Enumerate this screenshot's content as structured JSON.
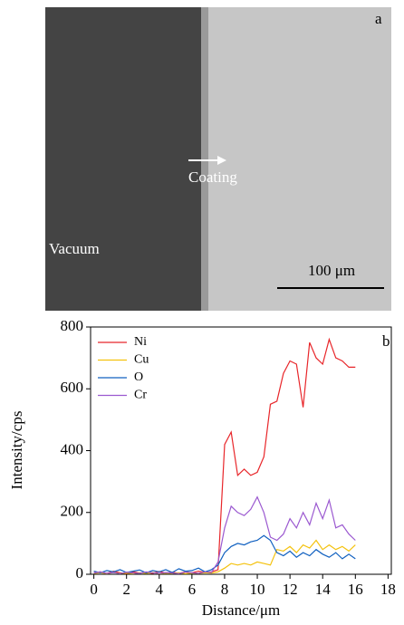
{
  "panel_a": {
    "label": "a",
    "arrow_label": "Coating",
    "region_label": "Vacuum",
    "scale_bar": "100 μm"
  },
  "chart_data": {
    "type": "line",
    "panel_label": "b",
    "x_label": "Distance/μm",
    "y_label": "Intensity/cps",
    "x": [
      0,
      0.4,
      0.8,
      1.2,
      1.6,
      2.0,
      2.4,
      2.8,
      3.2,
      3.6,
      4.0,
      4.4,
      4.8,
      5.2,
      5.6,
      6.0,
      6.4,
      6.8,
      7.2,
      7.6,
      8.0,
      8.4,
      8.8,
      9.2,
      9.6,
      10.0,
      10.4,
      10.8,
      11.2,
      11.6,
      12.0,
      12.4,
      12.8,
      13.2,
      13.6,
      14.0,
      14.4,
      14.8,
      15.2,
      15.6,
      16.0
    ],
    "series": [
      {
        "name": "Ni",
        "color": "#e8262a",
        "values": [
          5,
          8,
          3,
          10,
          5,
          2,
          8,
          4,
          6,
          3,
          9,
          4,
          7,
          3,
          8,
          5,
          10,
          6,
          8,
          15,
          420,
          460,
          320,
          340,
          320,
          330,
          380,
          550,
          560,
          650,
          690,
          680,
          540,
          750,
          700,
          680,
          760,
          700,
          690,
          670,
          670
        ]
      },
      {
        "name": "Cu",
        "color": "#f4c20d",
        "values": [
          3,
          5,
          2,
          6,
          3,
          4,
          2,
          5,
          3,
          6,
          2,
          4,
          3,
          5,
          2,
          4,
          3,
          5,
          4,
          8,
          20,
          35,
          30,
          35,
          30,
          40,
          35,
          30,
          80,
          75,
          90,
          70,
          95,
          85,
          110,
          80,
          95,
          80,
          90,
          75,
          95
        ]
      },
      {
        "name": "O",
        "color": "#1060c0",
        "values": [
          10,
          5,
          12,
          8,
          15,
          6,
          10,
          14,
          5,
          12,
          8,
          15,
          6,
          18,
          10,
          12,
          20,
          8,
          15,
          30,
          70,
          90,
          100,
          95,
          105,
          110,
          125,
          110,
          70,
          60,
          75,
          55,
          70,
          60,
          80,
          65,
          55,
          70,
          50,
          65,
          50
        ]
      },
      {
        "name": "Cr",
        "color": "#9b59d0",
        "values": [
          4,
          8,
          3,
          6,
          2,
          7,
          4,
          3,
          8,
          5,
          3,
          6,
          4,
          2,
          7,
          5,
          3,
          8,
          6,
          40,
          150,
          220,
          200,
          190,
          210,
          250,
          200,
          120,
          110,
          130,
          180,
          150,
          200,
          160,
          230,
          180,
          240,
          150,
          160,
          130,
          110
        ]
      }
    ],
    "xlim": [
      -0.2,
      18.2
    ],
    "xticks": [
      0,
      2,
      4,
      6,
      8,
      10,
      12,
      14,
      16,
      18
    ],
    "ylim": [
      0,
      800
    ],
    "yticks": [
      0,
      200,
      400,
      600,
      800
    ],
    "legend": "upper left"
  }
}
